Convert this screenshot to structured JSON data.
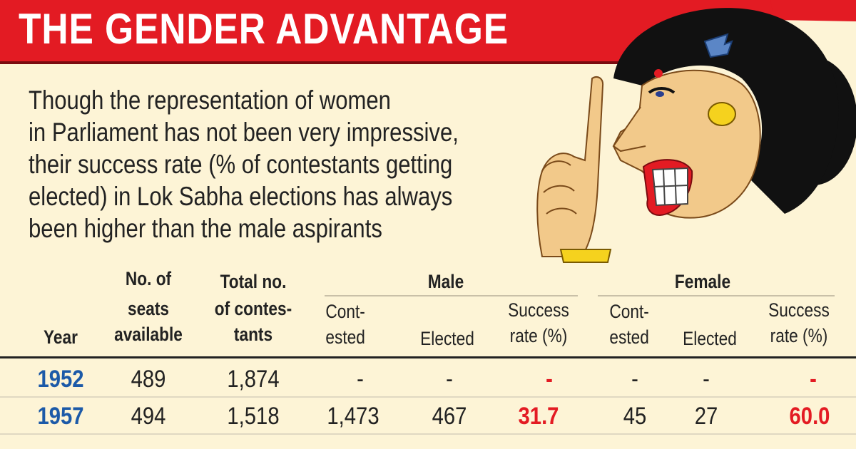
{
  "title": "THE GENDER ADVANTAGE",
  "intro_lines": [
    "Though the representation of women",
    "in Parliament has not been very impressive,",
    "their success rate (% of contestants getting",
    "elected) in Lok Sabha elections has always",
    "been higher than the male aspirants"
  ],
  "table": {
    "group_headers": {
      "male": "Male",
      "female": "Female"
    },
    "columns": {
      "year": "Year",
      "seats": [
        "No. of",
        "seats",
        "available"
      ],
      "contestants": [
        "Total no.",
        "of contes-",
        "tants"
      ],
      "male_contested": [
        "Cont-",
        "ested"
      ],
      "male_elected": "Elected",
      "male_rate": [
        "Success",
        "rate (%)"
      ],
      "female_contested": [
        "Cont-",
        "ested"
      ],
      "female_elected": "Elected",
      "female_rate": [
        "Success",
        "rate (%)"
      ]
    },
    "rows": [
      {
        "year": "1952",
        "seats": "489",
        "contestants": "1,874",
        "male_contested": "-",
        "male_elected": "-",
        "male_rate": "-",
        "female_contested": "-",
        "female_elected": "-",
        "female_rate": "-"
      },
      {
        "year": "1957",
        "seats": "494",
        "contestants": "1,518",
        "male_contested": "1,473",
        "male_elected": "467",
        "male_rate": "31.7",
        "female_contested": "45",
        "female_elected": "27",
        "female_rate": "60.0"
      }
    ]
  },
  "colors": {
    "title_bar": "#e31b23",
    "background": "#fdf4d6",
    "year_text": "#1c5aa8",
    "rate_text": "#e31b23"
  },
  "illustration": "woman-with-finger-raised"
}
